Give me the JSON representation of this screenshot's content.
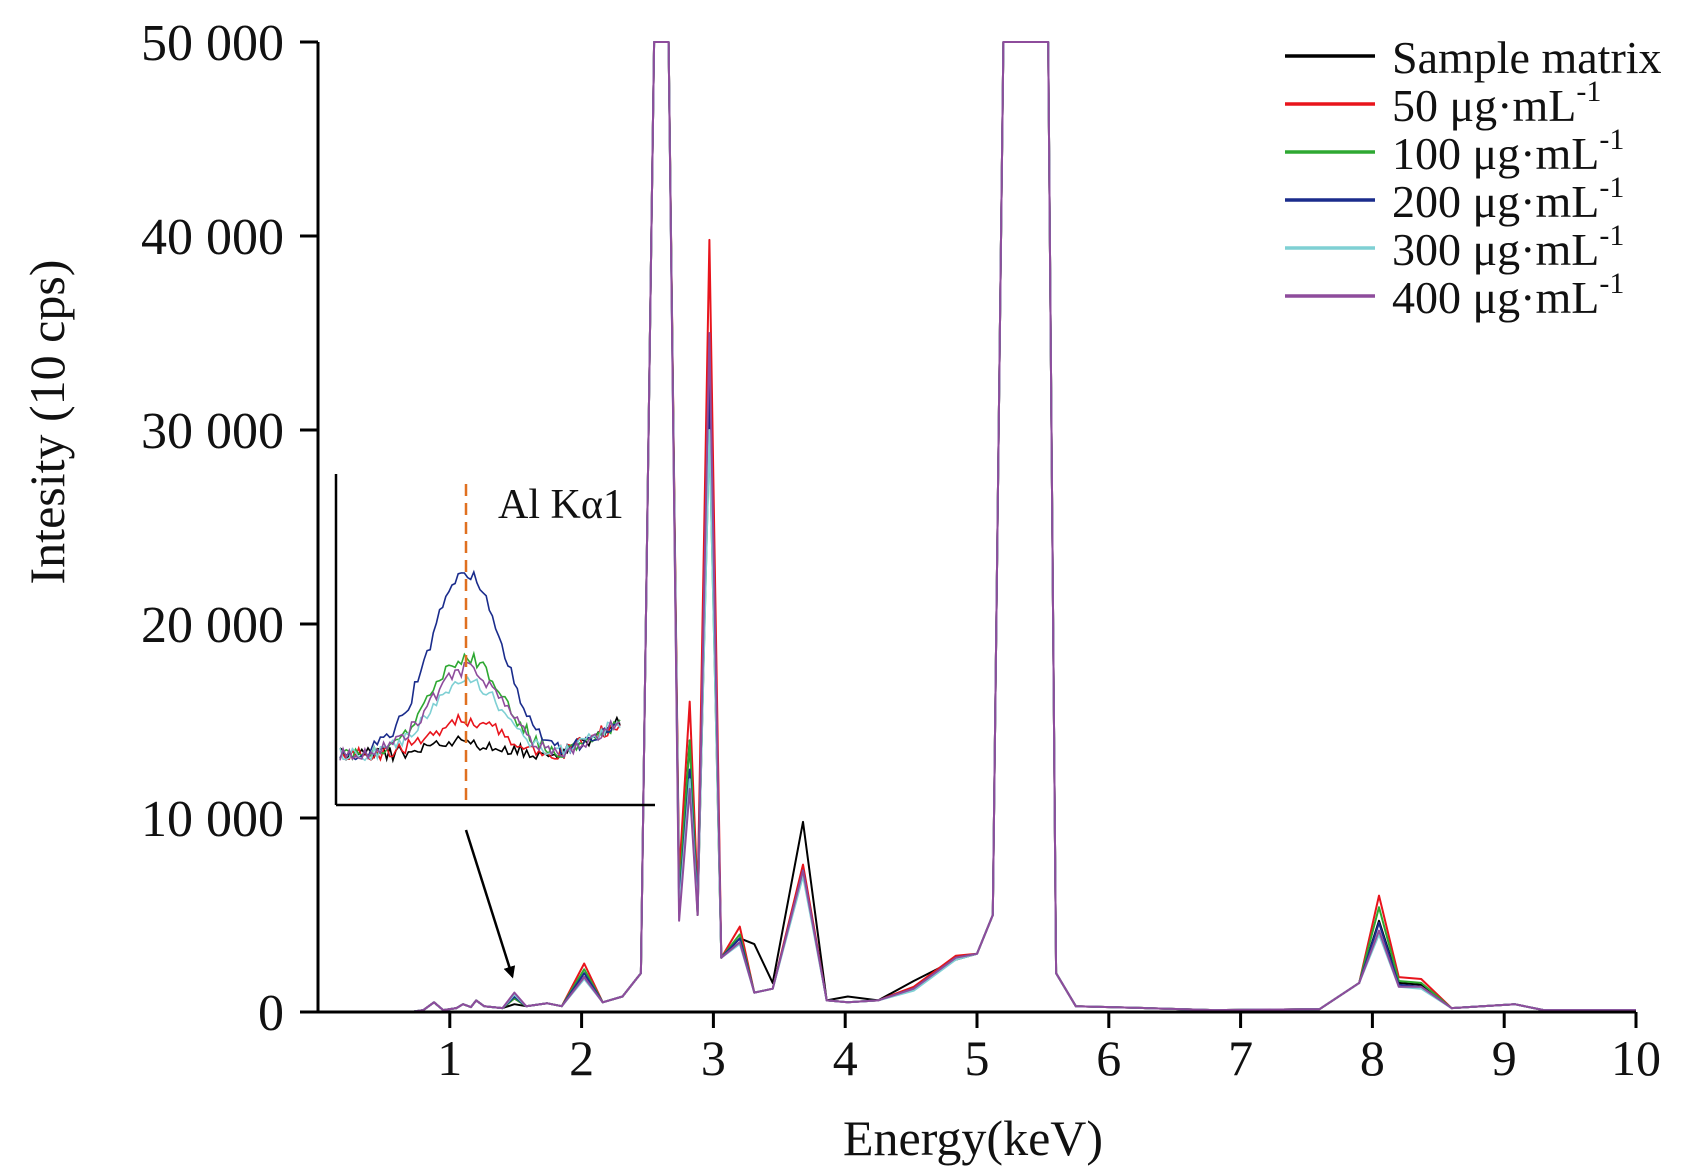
{
  "chart_data": {
    "type": "line",
    "xlabel": "Energy(keV)",
    "ylabel": "Intesity (10 cps)",
    "xlim": [
      0,
      10
    ],
    "ylim": [
      0,
      50000
    ],
    "x_ticks": [
      "1",
      "2",
      "3",
      "4",
      "5",
      "6",
      "7",
      "8",
      "9",
      "10"
    ],
    "y_ticks": [
      "0",
      "10 000",
      "20 000",
      "30 000",
      "40 000",
      "50 000"
    ],
    "legend_position": "top-right",
    "x": [
      0.0,
      0.7,
      0.8,
      0.88,
      0.95,
      1.05,
      1.1,
      1.16,
      1.2,
      1.26,
      1.4,
      1.49,
      1.58,
      1.74,
      1.85,
      2.02,
      2.16,
      2.31,
      2.45,
      2.55,
      2.58,
      2.61,
      2.66,
      2.74,
      2.82,
      2.88,
      2.97,
      3.06,
      3.2,
      3.31,
      3.45,
      3.68,
      3.86,
      4.02,
      4.25,
      4.52,
      4.84,
      5.0,
      5.12,
      5.2,
      5.3,
      5.4,
      5.54,
      5.6,
      5.75,
      6.28,
      6.8,
      7.6,
      7.9,
      8.05,
      8.2,
      8.37,
      8.6,
      9.08,
      9.3,
      10.0
    ],
    "series": [
      {
        "name": "Sample matrix",
        "color": "#000000",
        "values": [
          0,
          0,
          100,
          500,
          100,
          200,
          400,
          250,
          600,
          300,
          200,
          400,
          300,
          450,
          300,
          1800,
          500,
          800,
          2000,
          50000,
          50000,
          50000,
          50000,
          6500,
          14000,
          5000,
          31000,
          2800,
          3800,
          3500,
          1500,
          9800,
          600,
          800,
          600,
          1600,
          2700,
          3000,
          5000,
          50000,
          50000,
          50000,
          50000,
          2000,
          300,
          200,
          100,
          150,
          1500,
          4700,
          1500,
          1400,
          200,
          400,
          100,
          100
        ]
      },
      {
        "name": "50 μg·mL-1",
        "color": "#e8141c",
        "values": [
          0,
          0,
          100,
          500,
          100,
          200,
          400,
          250,
          600,
          300,
          200,
          700,
          300,
          450,
          300,
          2500,
          500,
          800,
          2000,
          50000,
          50000,
          50000,
          50000,
          7000,
          16000,
          6000,
          39800,
          2800,
          4400,
          1000,
          1200,
          7600,
          600,
          500,
          600,
          1300,
          2900,
          3000,
          5000,
          50000,
          50000,
          50000,
          50000,
          2000,
          300,
          200,
          100,
          150,
          1500,
          6000,
          1800,
          1700,
          200,
          400,
          100,
          100
        ]
      },
      {
        "name": "100 μg·mL-1",
        "color": "#2ea832",
        "values": [
          0,
          0,
          100,
          500,
          100,
          200,
          400,
          250,
          600,
          300,
          200,
          700,
          300,
          450,
          300,
          2200,
          500,
          800,
          2000,
          50000,
          50000,
          50000,
          50000,
          6000,
          14000,
          5500,
          30000,
          2800,
          4000,
          1000,
          1200,
          7200,
          600,
          500,
          600,
          1200,
          2800,
          3000,
          5000,
          50000,
          50000,
          50000,
          50000,
          2000,
          300,
          200,
          100,
          150,
          1500,
          5400,
          1600,
          1500,
          200,
          400,
          100,
          100
        ]
      },
      {
        "name": "200 μg·mL-1",
        "color": "#1a2c8c",
        "values": [
          0,
          0,
          100,
          500,
          100,
          200,
          400,
          250,
          600,
          300,
          200,
          800,
          300,
          450,
          300,
          2000,
          500,
          800,
          2000,
          50000,
          50000,
          50000,
          50000,
          5500,
          12500,
          5500,
          32500,
          2800,
          3800,
          1000,
          1200,
          7300,
          600,
          500,
          600,
          1200,
          2800,
          3000,
          5000,
          50000,
          50000,
          50000,
          50000,
          2000,
          300,
          200,
          100,
          150,
          1500,
          4600,
          1400,
          1300,
          200,
          400,
          100,
          100
        ]
      },
      {
        "name": "300 μg·mL-1",
        "color": "#7fd0d4",
        "values": [
          0,
          0,
          100,
          500,
          100,
          200,
          400,
          250,
          600,
          300,
          200,
          900,
          300,
          450,
          300,
          1700,
          500,
          800,
          2000,
          50000,
          50000,
          50000,
          50000,
          5200,
          12000,
          5200,
          30000,
          2800,
          3500,
          1000,
          1200,
          7000,
          600,
          500,
          600,
          1100,
          2700,
          3000,
          5000,
          50000,
          50000,
          50000,
          50000,
          2000,
          300,
          200,
          100,
          150,
          1500,
          4000,
          1300,
          1200,
          200,
          400,
          100,
          100
        ]
      },
      {
        "name": "400 μg·mL-1",
        "color": "#8e4c9c",
        "values": [
          0,
          0,
          100,
          500,
          100,
          200,
          400,
          250,
          600,
          300,
          200,
          1000,
          300,
          450,
          300,
          1800,
          500,
          800,
          2000,
          50000,
          50000,
          50000,
          50000,
          4700,
          11500,
          5000,
          35000,
          2800,
          3600,
          1000,
          1200,
          7300,
          600,
          500,
          600,
          1200,
          2800,
          3000,
          5000,
          50000,
          50000,
          50000,
          50000,
          2000,
          300,
          200,
          100,
          150,
          1500,
          4200,
          1300,
          1300,
          200,
          400,
          100,
          100
        ]
      }
    ],
    "inset": {
      "annotation": "Al Kα1",
      "series_order": [
        "Sample matrix",
        "50 μg·mL-1",
        "100 μg·mL-1",
        "200 μg·mL-1",
        "300 μg·mL-1",
        "400 μg·mL-1"
      ],
      "peak_heights": [
        0.05,
        0.14,
        0.4,
        0.75,
        0.3,
        0.35
      ]
    }
  }
}
